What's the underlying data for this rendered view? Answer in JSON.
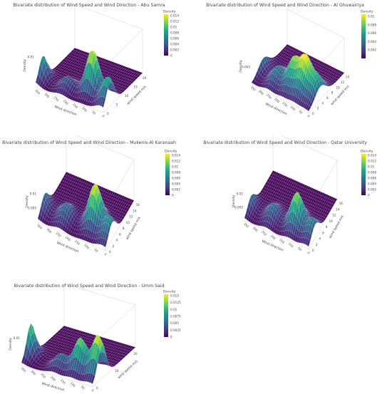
{
  "colors": {
    "viridis": [
      "#440154",
      "#482475",
      "#414487",
      "#355f8d",
      "#2a788e",
      "#21918c",
      "#22a884",
      "#44bf70",
      "#7ad151",
      "#bddf26",
      "#fde725"
    ],
    "surface_edge": "#ffffff",
    "axis_box": "#bbbbbb"
  },
  "chart_data": [
    {
      "type": "surface3d",
      "title": "Bivariate distribution of Wind Speed and Wind Direction -  Abu Samra",
      "xlabel": "Wind direction",
      "ylabel": "wind speed m/s",
      "zlabel": "Density",
      "x_ticks": [
        "0",
        "50",
        "100",
        "150",
        "200",
        "250",
        "300",
        "350"
      ],
      "y_ticks": [
        "0",
        "5",
        "10",
        "15",
        "20"
      ],
      "z_ticks": [
        "0.01"
      ],
      "y_max": 22,
      "z_max": 0.0145,
      "colorbar": {
        "title": "Density",
        "ticks": [
          "0.014",
          "0.012",
          "0.01",
          "0.008",
          "0.006",
          "0.004",
          "0.002",
          "0"
        ],
        "max": 0.0145
      },
      "peaks": [
        {
          "dir": 15,
          "speed": 4,
          "density": 0.009
        },
        {
          "dir": 120,
          "speed": 6.5,
          "density": 0.014
        },
        {
          "dir": 230,
          "speed": 4,
          "density": 0.004
        }
      ]
    },
    {
      "type": "surface3d",
      "title": "Bivariate distribution of Wind Speed and Wind Direction -  Al Ghuwairiya",
      "xlabel": "Wind direction",
      "ylabel": "wind speed m/s",
      "zlabel": "Density",
      "x_ticks": [
        "0",
        "50",
        "100",
        "150",
        "200",
        "250",
        "300",
        "350"
      ],
      "y_ticks": [
        "0",
        "2",
        "4",
        "6",
        "8",
        "10",
        "12",
        "14"
      ],
      "z_ticks": [
        "0.005"
      ],
      "y_max": 15,
      "z_max": 0.0105,
      "colorbar": {
        "title": "Density",
        "ticks": [
          "0.01",
          "0.008",
          "0.006",
          "0.004",
          "0.002"
        ],
        "max": 0.0105
      },
      "peaks": [
        {
          "dir": 30,
          "speed": 5,
          "density": 0.006
        },
        {
          "dir": 100,
          "speed": 5,
          "density": 0.01
        },
        {
          "dir": 170,
          "speed": 5,
          "density": 0.008
        },
        {
          "dir": 260,
          "speed": 4,
          "density": 0.004
        }
      ]
    },
    {
      "type": "surface3d",
      "title": "Bivariate distribution of Wind Speed and Wind Direction -  Mukenis-Al Karanaah",
      "xlabel": "Wind direction",
      "ylabel": "wind speed m/s",
      "zlabel": "Density",
      "x_ticks": [
        "0",
        "50",
        "100",
        "150",
        "200",
        "250",
        "300",
        "350"
      ],
      "y_ticks": [
        "0",
        "2",
        "4",
        "6",
        "8",
        "10",
        "12",
        "14",
        "16"
      ],
      "z_ticks": [
        "0.01",
        "0.005"
      ],
      "y_max": 17,
      "z_max": 0.0145,
      "colorbar": {
        "title": "Density",
        "ticks": [
          "0.014",
          "0.012",
          "0.01",
          "0.008",
          "0.006",
          "0.004",
          "0.002",
          "0"
        ],
        "max": 0.0145
      },
      "peaks": [
        {
          "dir": 20,
          "speed": 4,
          "density": 0.007
        },
        {
          "dir": 110,
          "speed": 6,
          "density": 0.014
        },
        {
          "dir": 250,
          "speed": 4,
          "density": 0.005
        }
      ]
    },
    {
      "type": "surface3d",
      "title": "Bivariate distribution of Wind Speed and Wind Direction -  Qatar University",
      "xlabel": "Wind direction",
      "ylabel": "wind speed m/s",
      "zlabel": "Density",
      "x_ticks": [
        "0",
        "50",
        "100",
        "150",
        "200",
        "250",
        "300",
        "350"
      ],
      "y_ticks": [
        "0",
        "2",
        "4",
        "6",
        "8",
        "10",
        "12",
        "14",
        "16"
      ],
      "z_ticks": [
        "0.01",
        "0.005"
      ],
      "y_max": 17,
      "z_max": 0.0145,
      "colorbar": {
        "title": "Density",
        "ticks": [
          "0.014",
          "0.012",
          "0.01",
          "0.008",
          "0.006",
          "0.004",
          "0.002",
          "0"
        ],
        "max": 0.0145
      },
      "peaks": [
        {
          "dir": 20,
          "speed": 4,
          "density": 0.006
        },
        {
          "dir": 115,
          "speed": 5,
          "density": 0.012
        },
        {
          "dir": 240,
          "speed": 4,
          "density": 0.005
        }
      ]
    },
    {
      "type": "surface3d",
      "title": "Bivariate distribution of Wind Speed and Wind Direction -  Umm Said",
      "xlabel": "Wind direction",
      "ylabel": "wind speed m/s",
      "zlabel": "Density",
      "x_ticks": [
        "0",
        "50",
        "100",
        "150",
        "200",
        "250",
        "300",
        "350"
      ],
      "y_ticks": [
        "0",
        "10",
        "20"
      ],
      "z_ticks": [
        "0.01"
      ],
      "y_max": 23,
      "z_max": 0.0155,
      "colorbar": {
        "title": "Density",
        "ticks": [
          "0.015",
          "0.0125",
          "0.01",
          "0.0075",
          "0.005",
          "0.0025",
          "0"
        ],
        "max": 0.0155
      },
      "peaks": [
        {
          "dir": 20,
          "speed": 5,
          "density": 0.015
        },
        {
          "dir": 110,
          "speed": 5,
          "density": 0.012
        },
        {
          "dir": 200,
          "speed": 4,
          "density": 0.005
        }
      ]
    }
  ]
}
